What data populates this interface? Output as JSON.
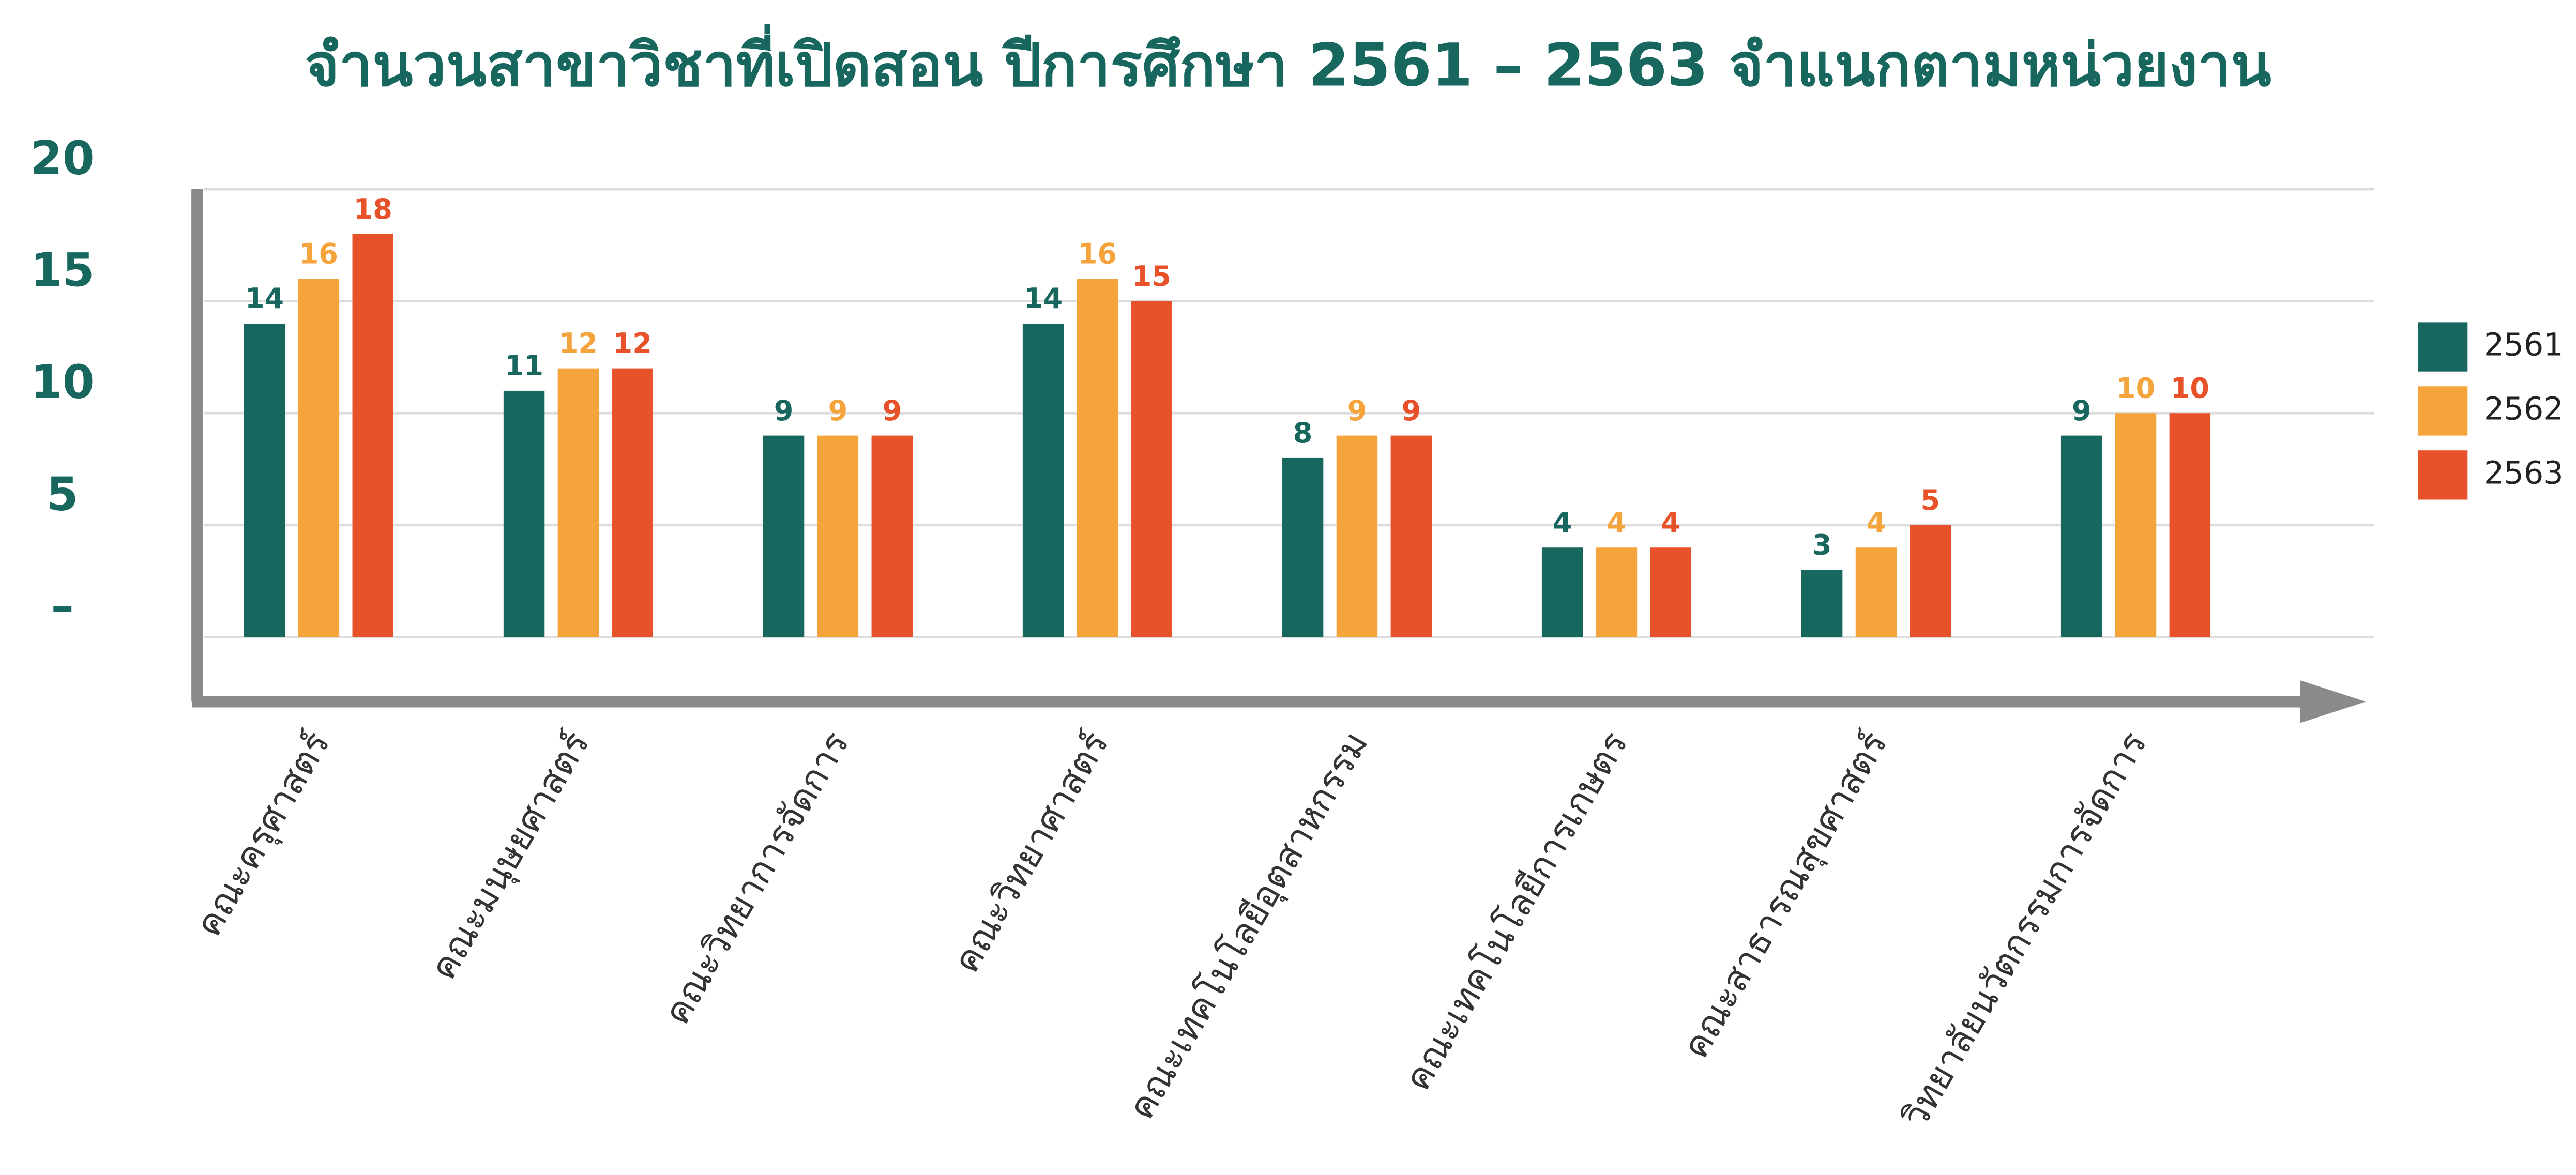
{
  "chart_data": {
    "type": "bar",
    "title": "จำนวนสาขาวิชาที่เปิดสอน ปีการศึกษา 2561 – 2563 จำแนกตามหน่วยงาน",
    "categories": [
      "คณะครุศาสตร์",
      "คณะมนุษยศาสตร์",
      "คณะวิทยาการจัดการ",
      "คณะวิทยาศาสตร์",
      "คณะเทคโนโลยีอุตสาหกรรม",
      "คณะเทคโนโลยีการเกษตร",
      "คณะสาธารณสุขศาสตร์",
      "วิทยาลัยนวัตกรรมการจัดการ"
    ],
    "series": [
      {
        "name": "2561",
        "color": "#17675f",
        "values": [
          14,
          11,
          9,
          14,
          8,
          4,
          3,
          9
        ]
      },
      {
        "name": "2562",
        "color": "#f5a33b",
        "values": [
          16,
          12,
          9,
          16,
          9,
          4,
          4,
          10
        ]
      },
      {
        "name": "2563",
        "color": "#e8522a",
        "values": [
          18,
          12,
          9,
          15,
          9,
          4,
          5,
          10
        ]
      }
    ],
    "ylim": [
      -2,
      20
    ],
    "yticks": [
      {
        "value": 0,
        "label": "–"
      },
      5,
      10,
      15,
      20
    ],
    "grid": true,
    "legend": "right"
  }
}
